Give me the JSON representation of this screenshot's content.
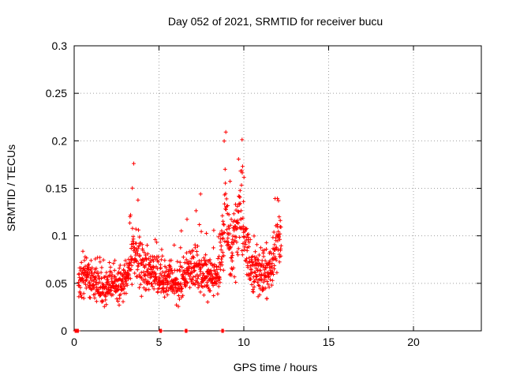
{
  "chart_data": {
    "type": "scatter",
    "title": "Day 052 of 2021, SRMTID for receiver bucu",
    "xlabel": "GPS time / hours",
    "ylabel": "SRMTID / TECUs",
    "xlim": [
      0,
      24
    ],
    "ylim": [
      0,
      0.3
    ],
    "xticks": [
      0,
      5,
      10,
      15,
      20
    ],
    "yticks": [
      0,
      0.05,
      0.1,
      0.15,
      0.2,
      0.25,
      0.3
    ],
    "grid": true,
    "marker": "+",
    "colors": {
      "series": "#ff0000",
      "grid": "#a0a0a0",
      "axes": "#000000"
    },
    "points_generation": {
      "seed": 52,
      "step_hours": 0.01,
      "zero_segments": [
        [
          0.05,
          0.25
        ],
        [
          5.05,
          5.15
        ],
        [
          6.55,
          6.65
        ],
        [
          8.7,
          8.8
        ]
      ],
      "profile": [
        {
          "x": 0.25,
          "base": 0.05,
          "spread": 0.015,
          "top": 0.07
        },
        {
          "x": 0.6,
          "base": 0.06,
          "spread": 0.018,
          "top": 0.095
        },
        {
          "x": 1.5,
          "base": 0.045,
          "spread": 0.015,
          "top": 0.08
        },
        {
          "x": 2.5,
          "base": 0.048,
          "spread": 0.015,
          "top": 0.075
        },
        {
          "x": 3.1,
          "base": 0.05,
          "spread": 0.015,
          "top": 0.08
        },
        {
          "x": 3.5,
          "base": 0.08,
          "spread": 0.025,
          "top": 0.19
        },
        {
          "x": 4.0,
          "base": 0.065,
          "spread": 0.02,
          "top": 0.1
        },
        {
          "x": 5.0,
          "base": 0.055,
          "spread": 0.015,
          "top": 0.1
        },
        {
          "x": 6.0,
          "base": 0.05,
          "spread": 0.015,
          "top": 0.09
        },
        {
          "x": 7.0,
          "base": 0.065,
          "spread": 0.02,
          "top": 0.14
        },
        {
          "x": 7.8,
          "base": 0.06,
          "spread": 0.02,
          "top": 0.15
        },
        {
          "x": 8.5,
          "base": 0.055,
          "spread": 0.015,
          "top": 0.1
        },
        {
          "x": 8.9,
          "base": 0.12,
          "spread": 0.04,
          "top": 0.27
        },
        {
          "x": 9.3,
          "base": 0.08,
          "spread": 0.025,
          "top": 0.15
        },
        {
          "x": 9.8,
          "base": 0.13,
          "spread": 0.04,
          "top": 0.245
        },
        {
          "x": 10.3,
          "base": 0.07,
          "spread": 0.02,
          "top": 0.1
        },
        {
          "x": 11.0,
          "base": 0.06,
          "spread": 0.02,
          "top": 0.1
        },
        {
          "x": 11.6,
          "base": 0.065,
          "spread": 0.02,
          "top": 0.11
        },
        {
          "x": 12.1,
          "base": 0.1,
          "spread": 0.03,
          "top": 0.185
        },
        {
          "x": 12.2,
          "base": 0.09,
          "spread": 0.02,
          "top": 0.11
        }
      ]
    }
  }
}
